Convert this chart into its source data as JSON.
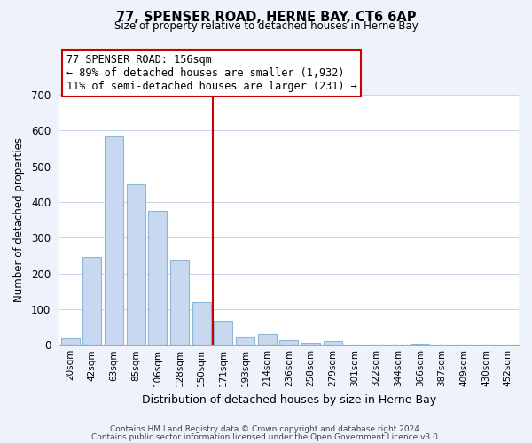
{
  "title": "77, SPENSER ROAD, HERNE BAY, CT6 6AP",
  "subtitle": "Size of property relative to detached houses in Herne Bay",
  "xlabel": "Distribution of detached houses by size in Herne Bay",
  "ylabel": "Number of detached properties",
  "bar_labels": [
    "20sqm",
    "42sqm",
    "63sqm",
    "85sqm",
    "106sqm",
    "128sqm",
    "150sqm",
    "171sqm",
    "193sqm",
    "214sqm",
    "236sqm",
    "258sqm",
    "279sqm",
    "301sqm",
    "322sqm",
    "344sqm",
    "366sqm",
    "387sqm",
    "409sqm",
    "430sqm",
    "452sqm"
  ],
  "bar_values": [
    18,
    247,
    583,
    450,
    375,
    235,
    120,
    68,
    23,
    31,
    14,
    5,
    10,
    1,
    0,
    0,
    3,
    0,
    0,
    0,
    1
  ],
  "bar_color": "#c8d8f0",
  "bar_edge_color": "#8ab8d8",
  "vline_index": 6,
  "vline_color": "#cc0000",
  "ylim": [
    0,
    700
  ],
  "yticks": [
    0,
    100,
    200,
    300,
    400,
    500,
    600,
    700
  ],
  "annotation_line1": "77 SPENSER ROAD: 156sqm",
  "annotation_line2": "← 89% of detached houses are smaller (1,932)",
  "annotation_line3": "11% of semi-detached houses are larger (231) →",
  "footer_line1": "Contains HM Land Registry data © Crown copyright and database right 2024.",
  "footer_line2": "Contains public sector information licensed under the Open Government Licence v3.0.",
  "background_color": "#eef2fa",
  "plot_background_color": "#ffffff",
  "grid_color": "#c8d4e8"
}
